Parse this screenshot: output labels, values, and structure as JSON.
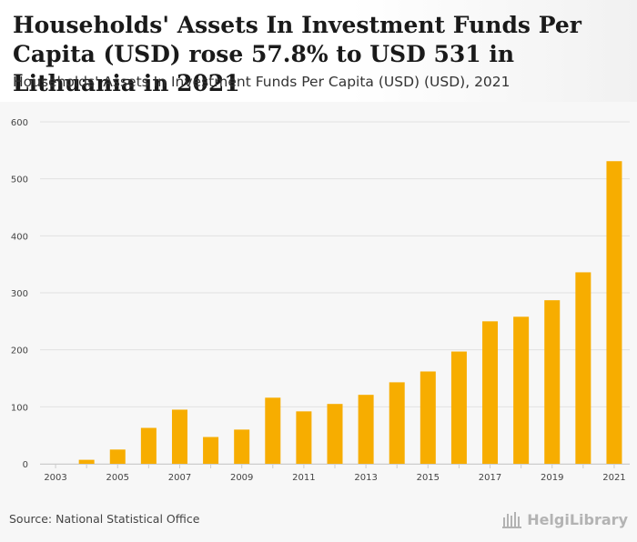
{
  "header": {
    "title": "Households' Assets In Investment Funds Per Capita (USD) rose 57.8% to USD 531 in Lithuania in 2021",
    "subtitle": "Households' Assets In Investment Funds Per Capita (USD) (USD), 2021"
  },
  "footer": {
    "source": "Source: National Statistical Office",
    "brand": "HelgiLibrary"
  },
  "colors": {
    "bar": "#f7ad00",
    "grid": "#e2e2e2",
    "axis_text": "#444444"
  },
  "chart_data": {
    "type": "bar",
    "title": "Households' Assets In Investment Funds Per Capita (USD) (USD), 2021",
    "xlabel": "",
    "ylabel": "",
    "ylim": [
      0,
      600
    ],
    "yticks": [
      0,
      100,
      200,
      300,
      400,
      500,
      600
    ],
    "categories": [
      "2003",
      "2004",
      "2005",
      "2006",
      "2007",
      "2008",
      "2009",
      "2010",
      "2011",
      "2012",
      "2013",
      "2014",
      "2015",
      "2016",
      "2017",
      "2018",
      "2019",
      "2020",
      "2021"
    ],
    "xtick_labels": [
      "2003",
      "2005",
      "2007",
      "2009",
      "2011",
      "2013",
      "2015",
      "2017",
      "2019",
      "2021"
    ],
    "values": [
      0,
      7,
      25,
      63,
      95,
      47,
      60,
      116,
      92,
      105,
      121,
      143,
      162,
      197,
      250,
      258,
      287,
      336,
      531
    ],
    "grid": true,
    "legend": "none"
  }
}
